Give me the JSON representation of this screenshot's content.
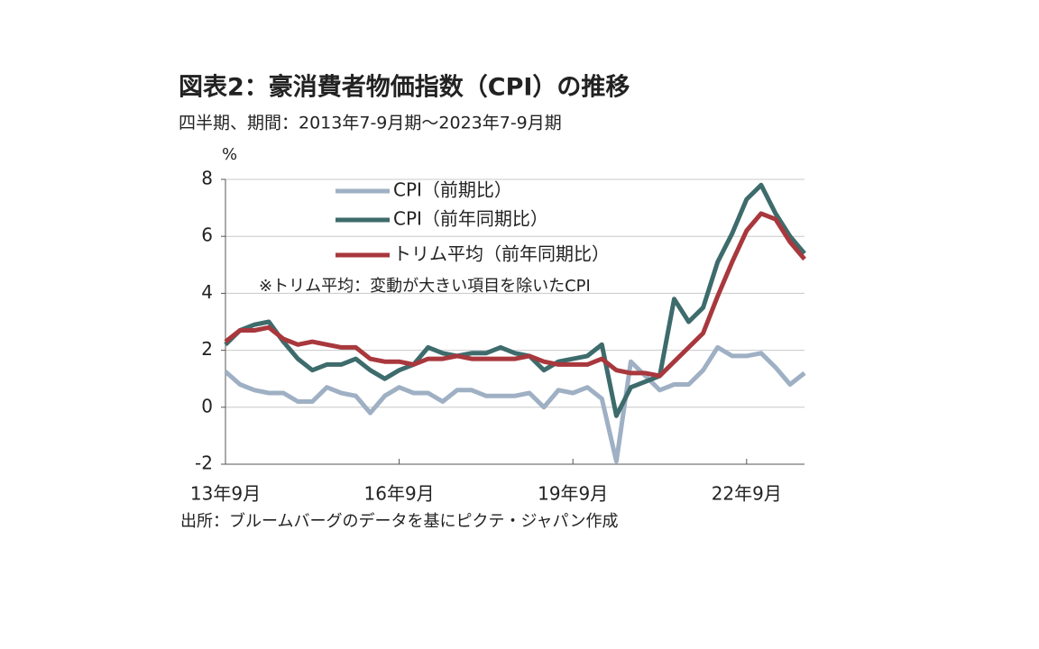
{
  "chart_data": {
    "type": "line",
    "title": "図表2：豪消費者物価指数（CPI）の推移",
    "subtitle": "四半期、期間：2013年7-9月期～2023年7-9月期",
    "y_unit": "%",
    "source": "出所：ブルームバーグのデータを基にピクテ・ジャパン作成",
    "annotation": "※トリム平均：変動が大きい項目を除いたCPI",
    "categories": [
      "13年9月",
      null,
      null,
      null,
      null,
      null,
      null,
      null,
      null,
      null,
      null,
      null,
      "16年9月",
      null,
      null,
      null,
      null,
      null,
      null,
      null,
      null,
      null,
      null,
      null,
      "19年9月",
      null,
      null,
      null,
      null,
      null,
      null,
      null,
      null,
      null,
      null,
      null,
      "22年9月",
      null,
      null,
      null,
      null
    ],
    "ylim": [
      -2,
      8
    ],
    "yticks": [
      -2,
      0,
      2,
      4,
      6,
      8
    ],
    "grid": true,
    "series": [
      {
        "name": "CPI（前期比）",
        "color": "#9fb0c4",
        "values": [
          1.25,
          0.8,
          0.6,
          0.5,
          0.5,
          0.2,
          0.2,
          0.7,
          0.5,
          0.4,
          -0.2,
          0.4,
          0.7,
          0.5,
          0.5,
          0.2,
          0.6,
          0.6,
          0.4,
          0.4,
          0.4,
          0.5,
          0.0,
          0.6,
          0.5,
          0.7,
          0.3,
          -1.9,
          1.6,
          1.1,
          0.6,
          0.8,
          0.8,
          1.3,
          2.1,
          1.8,
          1.8,
          1.9,
          1.4,
          0.8,
          1.2
        ]
      },
      {
        "name": "CPI（前年同期比）",
        "color": "#3e6b6c",
        "values": [
          2.2,
          2.7,
          2.9,
          3.0,
          2.3,
          1.7,
          1.3,
          1.5,
          1.5,
          1.7,
          1.3,
          1.0,
          1.3,
          1.5,
          2.1,
          1.9,
          1.8,
          1.9,
          1.9,
          2.1,
          1.9,
          1.8,
          1.3,
          1.6,
          1.7,
          1.8,
          2.2,
          -0.3,
          0.7,
          0.9,
          1.1,
          3.8,
          3.0,
          3.5,
          5.1,
          6.1,
          7.3,
          7.8,
          6.8,
          6.0,
          5.4
        ]
      },
      {
        "name": "トリム平均（前年同期比）",
        "color": "#a8383d",
        "values": [
          2.3,
          2.7,
          2.7,
          2.8,
          2.4,
          2.2,
          2.3,
          2.2,
          2.1,
          2.1,
          1.7,
          1.6,
          1.6,
          1.5,
          1.7,
          1.7,
          1.8,
          1.7,
          1.7,
          1.7,
          1.7,
          1.8,
          1.6,
          1.5,
          1.5,
          1.5,
          1.7,
          1.3,
          1.2,
          1.2,
          1.1,
          1.6,
          2.1,
          2.6,
          3.9,
          5.1,
          6.2,
          6.8,
          6.6,
          5.8,
          5.2
        ]
      }
    ]
  }
}
